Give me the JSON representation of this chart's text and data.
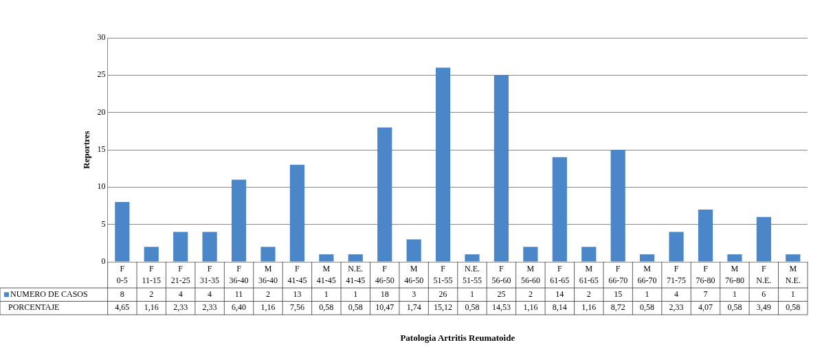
{
  "chart_data": {
    "type": "bar",
    "ylabel": "Reportres",
    "categories": [
      "F\n0-5",
      "F\n11-15",
      "F\n21-25",
      "F\n31-35",
      "F\n36-40",
      "M\n36-40",
      "F\n41-45",
      "M\n41-45",
      "N.E.\n41-45",
      "F\n46-50",
      "M\n46-50",
      "F\n51-55",
      "N.E.\n51-55",
      "F\n56-60",
      "M\n56-60",
      "F\n61-65",
      "M\n61-65",
      "F\n66-70",
      "M\n66-70",
      "F\n71-75",
      "F\n76-80",
      "M\n76-80",
      "F\nN.E.",
      "M\nN.E."
    ],
    "series": [
      {
        "name": "NUMERO DE CASOS",
        "color": "#4a86c8",
        "values": [
          8,
          2,
          4,
          4,
          11,
          2,
          13,
          1,
          1,
          18,
          3,
          26,
          1,
          25,
          2,
          14,
          2,
          15,
          1,
          4,
          7,
          1,
          6,
          1
        ]
      }
    ],
    "annotations": [
      "PORCENTAJE",
      "4,65",
      "1,16",
      "2,33",
      "2,33",
      "6,40",
      "1,16",
      "7,56",
      "0,58",
      "0,58",
      "10,47",
      "1,74",
      "15,12",
      "0,58",
      "14,53",
      "1,16",
      "8,14",
      "1,16",
      "8,72",
      "0,58",
      "2,33",
      "4,07",
      "0,58",
      "3,49",
      "0,58",
      "Patologia Artritis Reumatoide"
    ],
    "data_labels": true,
    "ylim": [
      0,
      30
    ],
    "yticks": [
      0,
      5,
      10,
      15,
      20,
      25,
      30
    ],
    "grid": "y",
    "legend": "bottom"
  }
}
